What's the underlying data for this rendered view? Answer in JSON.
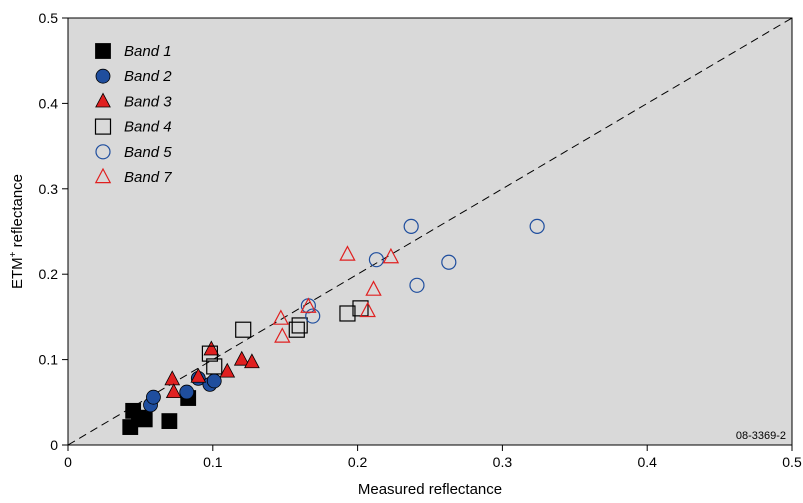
{
  "chart_data": {
    "type": "scatter",
    "xlabel": "Measured reflectance",
    "ylabel": "ETM",
    "ylabel_sup": "+",
    "ylabel_suffix": " reflectance",
    "xlim": [
      0,
      0.5
    ],
    "ylim": [
      0,
      0.5
    ],
    "x_ticks": [
      "0",
      "0.1",
      "0.2",
      "0.3",
      "0.4",
      "0.5"
    ],
    "y_ticks": [
      "0",
      "0.1",
      "0.2",
      "0.3",
      "0.4",
      "0.5"
    ],
    "grid": false,
    "plot_background": "#d9d9d9",
    "reference_line": {
      "style": "dashed",
      "from": [
        0,
        0
      ],
      "to": [
        0.5,
        0.5
      ]
    },
    "legend_position": "top-left",
    "annotation": "08-3369-2",
    "series": [
      {
        "name": "Band 1",
        "marker": "square",
        "filled": true,
        "color": "#000000",
        "points": [
          [
            0.043,
            0.021
          ],
          [
            0.045,
            0.04
          ],
          [
            0.049,
            0.032
          ],
          [
            0.053,
            0.03
          ],
          [
            0.07,
            0.028
          ],
          [
            0.083,
            0.055
          ]
        ]
      },
      {
        "name": "Band 2",
        "marker": "circle",
        "filled": true,
        "color": "#1f4e9e",
        "points": [
          [
            0.057,
            0.047
          ],
          [
            0.059,
            0.056
          ],
          [
            0.082,
            0.062
          ],
          [
            0.09,
            0.078
          ],
          [
            0.098,
            0.071
          ],
          [
            0.101,
            0.075
          ]
        ]
      },
      {
        "name": "Band 3",
        "marker": "triangle",
        "filled": true,
        "color": "#e02020",
        "points": [
          [
            0.072,
            0.077
          ],
          [
            0.073,
            0.062
          ],
          [
            0.09,
            0.08
          ],
          [
            0.099,
            0.112
          ],
          [
            0.11,
            0.086
          ],
          [
            0.12,
            0.1
          ],
          [
            0.127,
            0.097
          ]
        ]
      },
      {
        "name": "Band 4",
        "marker": "square",
        "filled": false,
        "color": "#000000",
        "points": [
          [
            0.098,
            0.107
          ],
          [
            0.101,
            0.092
          ],
          [
            0.121,
            0.135
          ],
          [
            0.158,
            0.135
          ],
          [
            0.16,
            0.14
          ],
          [
            0.193,
            0.154
          ],
          [
            0.202,
            0.16
          ]
        ]
      },
      {
        "name": "Band 5",
        "marker": "circle",
        "filled": false,
        "color": "#1f4e9e",
        "points": [
          [
            0.166,
            0.163
          ],
          [
            0.169,
            0.151
          ],
          [
            0.213,
            0.217
          ],
          [
            0.237,
            0.256
          ],
          [
            0.241,
            0.187
          ],
          [
            0.263,
            0.214
          ],
          [
            0.324,
            0.256
          ]
        ]
      },
      {
        "name": "Band 7",
        "marker": "triangle",
        "filled": false,
        "color": "#e02020",
        "points": [
          [
            0.147,
            0.148
          ],
          [
            0.148,
            0.127
          ],
          [
            0.166,
            0.162
          ],
          [
            0.193,
            0.223
          ],
          [
            0.207,
            0.157
          ],
          [
            0.211,
            0.182
          ],
          [
            0.223,
            0.22
          ]
        ]
      }
    ]
  }
}
